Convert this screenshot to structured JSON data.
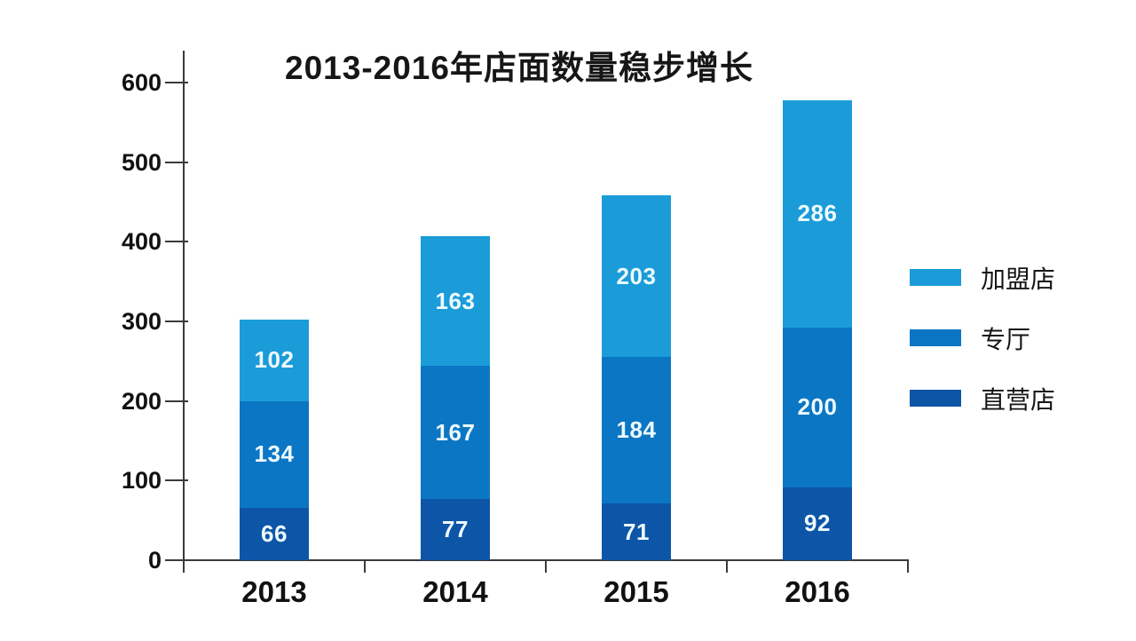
{
  "title": "2013-2016年店面数量稳步增长",
  "colors": {
    "franchise_light_blue": "#1B9CD9",
    "hall_medium_blue": "#0B76C4",
    "direct_dark_blue": "#0D55A6",
    "axis": "#3a3a3a",
    "value_label": "#ffffff"
  },
  "chart_data": {
    "type": "bar",
    "stacked": true,
    "title": "2013-2016年店面数量稳步增长",
    "categories": [
      "2013",
      "2014",
      "2015",
      "2016"
    ],
    "series": [
      {
        "name": "直营店",
        "color": "#0D55A6",
        "values": [
          66,
          77,
          71,
          92
        ]
      },
      {
        "name": "专厅",
        "color": "#0B76C4",
        "values": [
          134,
          167,
          184,
          200
        ]
      },
      {
        "name": "加盟店",
        "color": "#1B9CD9",
        "values": [
          102,
          163,
          203,
          286
        ]
      }
    ],
    "totals": [
      302,
      407,
      458,
      578
    ],
    "xlabel": "",
    "ylabel": "",
    "ylim": [
      0,
      600
    ],
    "yticks": [
      0,
      100,
      200,
      300,
      400,
      500,
      600
    ],
    "grid": false,
    "bar_value_labels": true,
    "legend_position": "right",
    "legend": [
      {
        "label": "加盟店",
        "color": "#1B9CD9"
      },
      {
        "label": "专厅",
        "color": "#0B76C4"
      },
      {
        "label": "直营店",
        "color": "#0D55A6"
      }
    ]
  }
}
